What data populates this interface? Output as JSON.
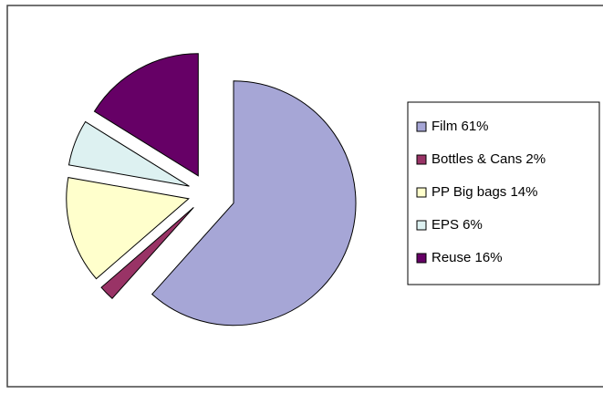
{
  "chart_data": {
    "type": "pie",
    "categories": [
      "Film 61%",
      "Bottles & Cans 2%",
      "PP Big bags 14%",
      "EPS 6%",
      "Reuse 16%"
    ],
    "values": [
      61,
      2,
      14,
      6,
      16
    ],
    "colors": [
      "#a6a6d6",
      "#993366",
      "#ffffcc",
      "#ddf1f1",
      "#660066"
    ],
    "legend": "right"
  }
}
